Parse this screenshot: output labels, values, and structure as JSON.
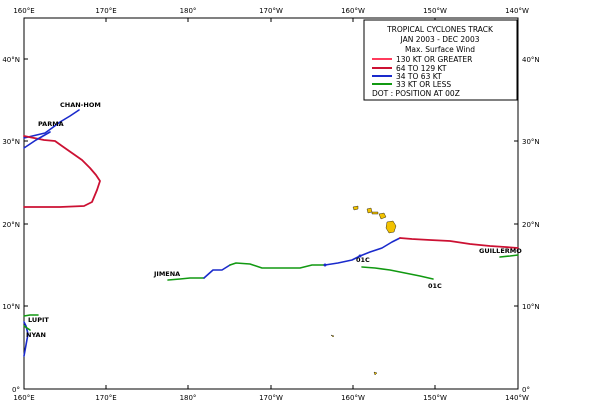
{
  "legend": {
    "title": "TROPICAL CYCLONES TRACK",
    "period": "JAN 2003  -  DEC 2003",
    "subtitle": "Max. Surface Wind",
    "items": [
      {
        "label": "130 KT OR GREATER",
        "color": "#ff3b5c"
      },
      {
        "label": "64  TO  129 KT",
        "color": "#cc1133"
      },
      {
        "label": "34  TO  63 KT",
        "color": "#1a2acc"
      },
      {
        "label": "33  KT OR LESS",
        "color": "#119911"
      }
    ],
    "dot_note": "DOT : POSITION AT 00Z"
  },
  "axes": {
    "x_ticks": [
      "160°E",
      "170°E",
      "180°",
      "170°W",
      "160°W",
      "150°W",
      "140°W"
    ],
    "y_ticks": [
      "0°",
      "10°N",
      "20°N",
      "30°N",
      "40°N"
    ]
  },
  "storms": [
    {
      "name": "CHAN-HOM"
    },
    {
      "name": "PARMA"
    },
    {
      "name": "JIMENA"
    },
    {
      "name": "01C"
    },
    {
      "name": "01C"
    },
    {
      "name": "GUILLERMO"
    },
    {
      "name": "LUPIT"
    },
    {
      "name": "NYAN"
    }
  ],
  "colors": {
    "island": "#f2c200",
    "frame": "#000000"
  }
}
